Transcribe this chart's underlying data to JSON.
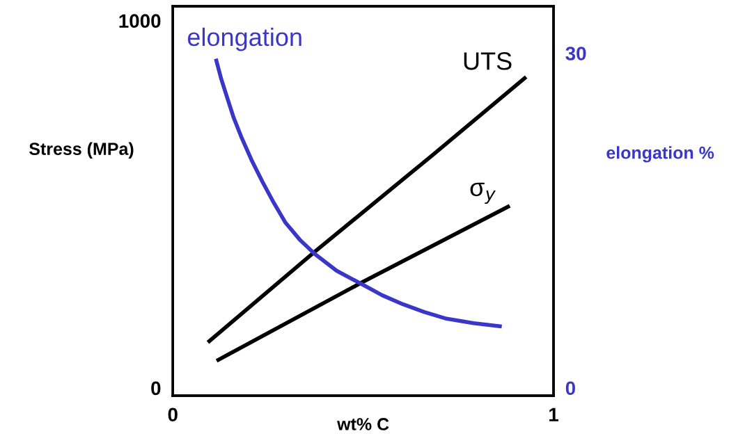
{
  "chart_data": {
    "type": "line",
    "xlabel": "wt% C",
    "ylabel": "Stress (MPa)",
    "y2label": "elongation %",
    "xlim": [
      0,
      1
    ],
    "xticks": [
      0,
      1
    ],
    "ylim": [
      -21,
      1039
    ],
    "yticks": [
      0,
      1000
    ],
    "y2lim": [
      -0.7,
      34.2
    ],
    "y2ticks": [
      0,
      30
    ],
    "grid": false,
    "legend": false,
    "marker": "none",
    "line_style": "solid",
    "series": [
      {
        "name": "elongation",
        "color": "#3a36c8",
        "axis": "y2",
        "x": [
          0.113,
          0.127,
          0.142,
          0.16,
          0.181,
          0.207,
          0.235,
          0.265,
          0.296,
          0.333,
          0.373,
          0.43,
          0.496,
          0.55,
          0.604,
          0.66,
          0.719,
          0.79,
          0.864
        ],
        "values": [
          29.5,
          27.7,
          26.1,
          24.2,
          22.4,
          20.4,
          18.5,
          16.6,
          14.8,
          13.3,
          12.0,
          10.5,
          9.3,
          8.3,
          7.5,
          6.8,
          6.2,
          5.8,
          5.5
        ]
      },
      {
        "name": "UTS",
        "color": "#000000",
        "x": [
          0.092,
          0.373,
          0.681,
          0.928
        ],
        "values": [
          124,
          371,
          633,
          847
        ]
      },
      {
        "name": "σ$_{y}$",
        "color": "#000000",
        "x": [
          0.115,
          0.496,
          0.885
        ],
        "values": [
          74,
          287,
          496
        ]
      }
    ]
  }
}
